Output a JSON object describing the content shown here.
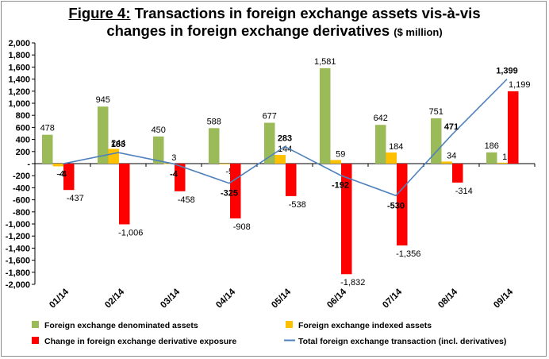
{
  "title": {
    "figure_label": "Figure 4:",
    "line1": "Transactions in foreign exchange assets vis-à-vis",
    "line2": "changes in foreign exchange derivatives",
    "unit": "($ million)"
  },
  "chart_data": {
    "type": "bar",
    "categories": [
      "01/14",
      "02/14",
      "03/14",
      "04/14",
      "05/14",
      "06/14",
      "07/14",
      "08/14",
      "09/14"
    ],
    "ylim": [
      -2000,
      2000
    ],
    "yticks": [
      -2000,
      -1800,
      -1600,
      -1400,
      -1200,
      -1000,
      -800,
      -600,
      -400,
      -200,
      0,
      200,
      400,
      600,
      800,
      1000,
      1200,
      1400,
      1600,
      1800,
      2000
    ],
    "ytick_labels": [
      "-2,000",
      "-1,800",
      "-1,600",
      "-1,400",
      "-1,200",
      "-1,000",
      "-800",
      "-600",
      "-400",
      "-200",
      "-",
      "200",
      "400",
      "600",
      "800",
      "1,000",
      "1,200",
      "1,400",
      "1,600",
      "1,800",
      "2,000"
    ],
    "series": [
      {
        "name": "Foreign exchange denominated assets",
        "kind": "bar",
        "color": "#9bbb59",
        "values": [
          478,
          945,
          450,
          588,
          677,
          1581,
          642,
          751,
          186
        ],
        "labels": [
          "478",
          "945",
          "450",
          "588",
          "677",
          "1,581",
          "642",
          "751",
          "186"
        ]
      },
      {
        "name": "Foreign exchange indexed assets",
        "kind": "bar",
        "color": "#ffc000",
        "values": [
          -45,
          244,
          3,
          -5,
          144,
          59,
          184,
          34,
          15
        ],
        "labels": [
          "-45",
          "244",
          "3",
          "-5",
          "144",
          "59",
          "184",
          "34",
          "15"
        ]
      },
      {
        "name": "Change in foreign exchange derivative exposure",
        "kind": "bar",
        "color": "#ff0000",
        "values": [
          -437,
          -1006,
          -458,
          -908,
          -538,
          -1832,
          -1356,
          -314,
          1199
        ],
        "labels": [
          "-437",
          "-1,006",
          "-458",
          "-908",
          "-538",
          "-1,832",
          "-1,356",
          "-314",
          "1,199"
        ]
      },
      {
        "name": "Total foreign exchange transaction (incl. derivatives)",
        "kind": "line",
        "color": "#4f81bd",
        "values": [
          -4,
          183,
          -4,
          -325,
          283,
          -192,
          -530,
          471,
          1399
        ],
        "labels": [
          "-4",
          "183",
          "-4",
          "-325",
          "283",
          "-192",
          "-530",
          "471",
          "1,399"
        ]
      }
    ],
    "grid": false,
    "legend_position": "bottom"
  }
}
